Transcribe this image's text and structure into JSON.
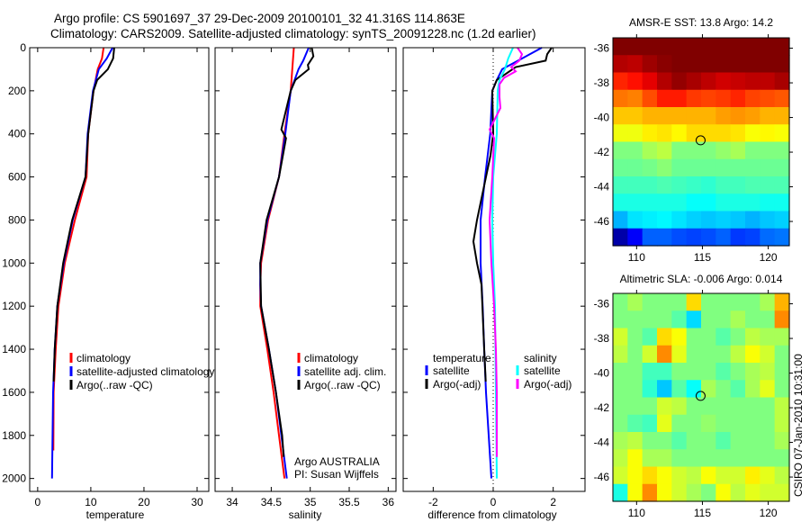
{
  "title": {
    "line1": "Argo profile: CS 5901697_37 29-Dec-2009 20100101_32 41.316S 114.863E",
    "line2": "Climatology: CARS2009. Satellite-adjusted climatology: synTS_20091228.nc (1.2d earlier)"
  },
  "side_label": "CSIRO 07-Jan-2010 10:31:00",
  "credit": {
    "line1": "Argo AUSTRALIA",
    "line2": "PI: Susan Wijffels"
  },
  "colors": {
    "climatology": "#ff0000",
    "satellite": "#0000ff",
    "argo": "#000000",
    "sal_satellite": "#00ffff",
    "sal_argo": "#ff00ff"
  },
  "chart_data": [
    {
      "id": "temp",
      "type": "line",
      "xlabel": "temperature",
      "ylabel": "",
      "xlim": [
        -1.5,
        32.2
      ],
      "ylim": [
        2060,
        0
      ],
      "xticks": [
        0,
        10,
        20,
        30
      ],
      "yticks": [
        0,
        200,
        400,
        600,
        800,
        1000,
        1200,
        1400,
        1600,
        1800,
        2000
      ],
      "legend": [
        "climatology",
        "satellite-adjusted climatology",
        "Argo(..raw -QC)"
      ],
      "series": [
        {
          "name": "climatology",
          "color": "#ff0000",
          "depth": [
            0,
            50,
            100,
            200,
            400,
            600,
            800,
            1000,
            1200,
            1400,
            1600,
            1870
          ],
          "values": [
            12.4,
            12.1,
            11.3,
            10.5,
            9.5,
            9.2,
            7.0,
            5.1,
            3.9,
            3.4,
            3.0,
            2.95
          ]
        },
        {
          "name": "satellite-adjusted climatology",
          "color": "#0000ff",
          "depth": [
            0,
            50,
            100,
            200,
            400,
            600,
            800,
            1000,
            1200,
            1400,
            1600,
            1800,
            2000
          ],
          "values": [
            14.1,
            13.0,
            11.5,
            10.4,
            9.4,
            9.0,
            6.6,
            4.9,
            3.7,
            3.2,
            2.9,
            2.8,
            2.7
          ]
        },
        {
          "name": "Argo(..raw -QC)",
          "color": "#000000",
          "depth": [
            0,
            50,
            100,
            150,
            200,
            400,
            600,
            800,
            1000,
            1200,
            1400,
            1550
          ],
          "values": [
            14.4,
            14.2,
            13.2,
            11.2,
            10.5,
            9.5,
            9.0,
            6.5,
            4.8,
            3.7,
            3.2,
            3.0
          ]
        }
      ]
    },
    {
      "id": "sal",
      "type": "line",
      "xlabel": "salinity",
      "xlim": [
        33.78,
        36.1
      ],
      "ylim": [
        2060,
        0
      ],
      "xticks": [
        34,
        34.5,
        35,
        35.5,
        36
      ],
      "yticks": [
        0,
        200,
        400,
        600,
        800,
        1000,
        1200,
        1400,
        1600,
        1800,
        2000
      ],
      "legend": [
        "climatology",
        "satellite adj. clim.",
        "Argo(..raw -QC)"
      ],
      "series": [
        {
          "name": "climatology",
          "color": "#ff0000",
          "depth": [
            0,
            200,
            400,
            600,
            800,
            1000,
            1100,
            1200,
            1400,
            1600,
            1800,
            2000
          ],
          "values": [
            34.79,
            34.75,
            34.67,
            34.6,
            34.46,
            34.37,
            34.36,
            34.36,
            34.45,
            34.53,
            34.6,
            34.67
          ]
        },
        {
          "name": "satellite adj. clim.",
          "color": "#0000ff",
          "depth": [
            0,
            60,
            100,
            200,
            400,
            600,
            800,
            1000,
            1100,
            1200,
            1400,
            1600,
            1800,
            2000
          ],
          "values": [
            34.98,
            34.91,
            34.85,
            34.75,
            34.68,
            34.6,
            34.45,
            34.36,
            34.36,
            34.37,
            34.47,
            34.56,
            34.63,
            34.7
          ]
        },
        {
          "name": "Argo(..raw -QC)",
          "color": "#000000",
          "depth": [
            0,
            40,
            80,
            100,
            150,
            200,
            380,
            420,
            600,
            800,
            1000,
            1200,
            1400,
            1600,
            1800,
            1900
          ],
          "values": [
            35.02,
            35.04,
            34.97,
            34.98,
            34.81,
            34.75,
            34.63,
            34.69,
            34.6,
            34.44,
            34.36,
            34.37,
            34.47,
            34.56,
            34.64,
            34.66
          ]
        }
      ]
    },
    {
      "id": "diff",
      "type": "line",
      "xlabel": "difference from climatology",
      "xlim": [
        -3.0,
        3.06
      ],
      "ylim": [
        2060,
        0
      ],
      "xticks": [
        -2,
        0,
        2
      ],
      "yticks": [
        0,
        200,
        400,
        600,
        800,
        1000,
        1200,
        1400,
        1600,
        1800,
        2000
      ],
      "legend_groups": [
        {
          "heading": "temperature",
          "items": [
            "satellite",
            "Argo(-adj)"
          ]
        },
        {
          "heading": "salinity",
          "items": [
            "satellite",
            "Argo(-adj)"
          ]
        }
      ],
      "series": [
        {
          "name": "temperature satellite",
          "color": "#0000ff",
          "depth": [
            0,
            50,
            100,
            150,
            200,
            400,
            600,
            800,
            1000,
            1200,
            1400,
            1600,
            1800,
            2000
          ],
          "values": [
            1.62,
            0.96,
            0.3,
            0.12,
            -0.03,
            -0.1,
            -0.27,
            -0.42,
            -0.42,
            -0.35,
            -0.3,
            -0.24,
            -0.15,
            -0.06
          ]
        },
        {
          "name": "temperature Argo(-adj)",
          "color": "#000000",
          "depth": [
            0,
            30,
            60,
            90,
            150,
            200,
            400,
            500,
            600,
            800,
            900,
            1000,
            1100,
            1200,
            1400,
            1550
          ],
          "values": [
            1.95,
            1.8,
            1.75,
            0.75,
            0.12,
            -0.03,
            0,
            -0.09,
            -0.24,
            -0.54,
            -0.66,
            -0.54,
            -0.39,
            -0.36,
            -0.3,
            -0.25
          ]
        },
        {
          "name": "salinity satellite",
          "color": "#00ffff",
          "depth": [
            0,
            50,
            100,
            150,
            200,
            400,
            600,
            800,
            1000,
            1200,
            1600,
            2000
          ],
          "values": [
            0.66,
            0.5,
            0.39,
            0.21,
            0.15,
            0.12,
            0,
            -0.03,
            0,
            0.06,
            0.09,
            0.12
          ]
        },
        {
          "name": "salinity Argo(-adj)",
          "color": "#ff00ff",
          "depth": [
            0,
            30,
            60,
            90,
            110,
            140,
            170,
            230,
            280,
            330,
            380,
            420,
            600,
            800,
            1000,
            1200,
            1400,
            1600,
            1900
          ],
          "values": [
            0.81,
            0.96,
            0.87,
            0.6,
            0.75,
            0.36,
            0.21,
            0.21,
            0.24,
            0.06,
            -0.12,
            0.03,
            -0.03,
            -0.12,
            -0.06,
            0.03,
            0.09,
            0.12,
            0.12
          ]
        }
      ]
    },
    {
      "id": "sst",
      "type": "heatmap",
      "title": "AMSR-E SST: 13.8 Argo: 14.2",
      "xlim": [
        108.2,
        121.6
      ],
      "ylim": [
        -47.4,
        -35.4
      ],
      "xticks": [
        110,
        115,
        120
      ],
      "yticks": [
        -36,
        -38,
        -40,
        -42,
        -44,
        -46
      ],
      "clim": [
        8,
        18
      ],
      "colormap": "jet",
      "marker": {
        "lon": 114.863,
        "lat": -41.316
      },
      "grid": [
        [
          18,
          18,
          18,
          18,
          18,
          18,
          18,
          18,
          18,
          18,
          18,
          18
        ],
        [
          17.5,
          17.4,
          17.7,
          17.9,
          18,
          18,
          18,
          18,
          18,
          18,
          18,
          18
        ],
        [
          16.4,
          16.6,
          17,
          17.5,
          17.8,
          17.6,
          17.4,
          17.2,
          17.3,
          17.4,
          17.4,
          17.6
        ],
        [
          15.6,
          15.5,
          16,
          16.5,
          16.5,
          16.2,
          16.1,
          16.2,
          16.4,
          16.1,
          16,
          15.9
        ],
        [
          14.8,
          14.8,
          15,
          15,
          15,
          15,
          15,
          15.2,
          15.3,
          15.2,
          15,
          15
        ],
        [
          14.1,
          14.1,
          14.4,
          14.5,
          14.3,
          14.6,
          14.6,
          14.6,
          14.5,
          14.2,
          14.3,
          14.2
        ],
        [
          13,
          13,
          13.4,
          13.6,
          13,
          13,
          13,
          13.2,
          13.4,
          13,
          13,
          13
        ],
        [
          12.8,
          12.8,
          12.9,
          13.1,
          12.8,
          12.8,
          12.8,
          12.8,
          12.8,
          12.8,
          12.8,
          12.8
        ],
        [
          12.4,
          12.4,
          12.4,
          12.5,
          12.4,
          12.3,
          12.2,
          12.4,
          12.4,
          12.5,
          12.5,
          12.5
        ],
        [
          12,
          12,
          12,
          12,
          12,
          11.8,
          11.8,
          12,
          12,
          12,
          11.9,
          11.9
        ],
        [
          11,
          11.5,
          11.6,
          11.7,
          11.5,
          11.3,
          11.2,
          11.3,
          11.2,
          11,
          11.2,
          11.3
        ],
        [
          8.4,
          9.2,
          10.2,
          10.2,
          10,
          9.9,
          10,
          10.2,
          9.8,
          9.9,
          10.3,
          10.4
        ]
      ]
    },
    {
      "id": "sla",
      "type": "heatmap",
      "title": "Altimetric SLA: -0.006 Argo: 0.014",
      "xlim": [
        108.2,
        121.6
      ],
      "ylim": [
        -47.4,
        -35.4
      ],
      "xticks": [
        110,
        115,
        120
      ],
      "yticks": [
        -36,
        -38,
        -40,
        -42,
        -44,
        -46
      ],
      "clim": [
        -0.25,
        0.25
      ],
      "colormap": "jet",
      "marker": {
        "lon": 114.863,
        "lat": -41.316
      },
      "grid": [
        [
          0,
          0.02,
          0,
          0,
          0,
          0.08,
          0,
          0,
          0,
          0,
          0.02,
          0.1
        ],
        [
          0,
          0,
          0,
          0,
          -0.02,
          -0.08,
          0,
          0,
          0.02,
          0,
          0,
          0.12
        ],
        [
          0.04,
          0,
          -0.02,
          0.08,
          0.06,
          0,
          0,
          -0.02,
          0,
          0.03,
          0.02,
          0.02
        ],
        [
          0.03,
          0,
          0.04,
          0.12,
          0.05,
          0,
          0,
          0,
          0.03,
          0.06,
          0.04,
          0
        ],
        [
          0,
          0,
          -0.03,
          -0.03,
          0,
          0,
          0,
          -0.02,
          0,
          0.02,
          0.03,
          0
        ],
        [
          0,
          0,
          -0.04,
          -0.09,
          -0.02,
          -0.06,
          0.02,
          0,
          -0.02,
          0.02,
          0.05,
          0
        ],
        [
          0,
          0,
          0,
          0.04,
          0.03,
          0,
          0,
          0,
          0,
          0,
          0,
          0.03
        ],
        [
          0,
          -0.02,
          -0.03,
          0.05,
          0,
          0,
          0.01,
          0,
          0,
          0,
          0,
          0.03
        ],
        [
          0.02,
          0.03,
          0,
          0,
          -0.02,
          0,
          0,
          -0.02,
          0,
          0,
          0,
          0.02
        ],
        [
          0.03,
          0.06,
          0.02,
          0.02,
          0,
          0,
          0,
          0,
          0,
          0,
          0,
          0
        ],
        [
          0.04,
          0.06,
          0.08,
          0.06,
          0.04,
          0.03,
          0.06,
          0.04,
          0.04,
          0.07,
          0.05,
          0.03
        ],
        [
          -0.05,
          0.06,
          0.12,
          0.06,
          0.04,
          0.02,
          0,
          0.06,
          0.03,
          0.05,
          0.04,
          0.04
        ]
      ]
    }
  ]
}
